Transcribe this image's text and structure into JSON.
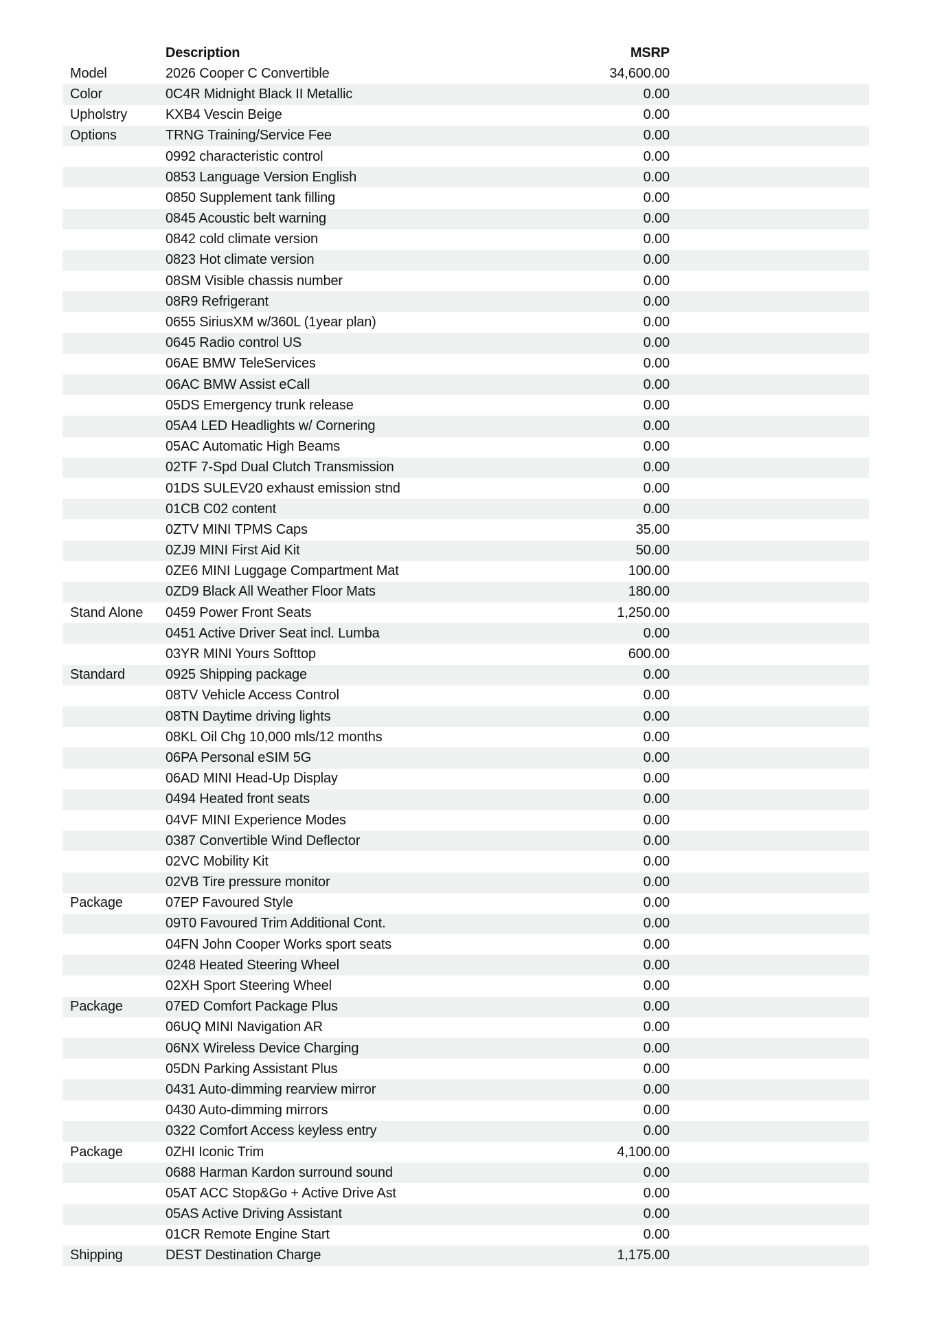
{
  "colors": {
    "row_stripe": "#eff1f0",
    "text": "#121212",
    "page_background": "#ffffff"
  },
  "table": {
    "header": {
      "category": "",
      "description": "Description",
      "msrp": "MSRP"
    },
    "rows": [
      {
        "category": "Model",
        "description": "2026 Cooper C Convertible",
        "msrp": "34,600.00"
      },
      {
        "category": "Color",
        "description": "0C4R Midnight Black II Metallic",
        "msrp": "0.00"
      },
      {
        "category": "Upholstry",
        "description": "KXB4 Vescin Beige",
        "msrp": "0.00"
      },
      {
        "category": "Options",
        "description": "TRNG Training/Service Fee",
        "msrp": "0.00"
      },
      {
        "category": "",
        "description": "0992 characteristic control",
        "msrp": "0.00"
      },
      {
        "category": "",
        "description": "0853 Language Version English",
        "msrp": "0.00"
      },
      {
        "category": "",
        "description": "0850 Supplement tank filling",
        "msrp": "0.00"
      },
      {
        "category": "",
        "description": "0845 Acoustic belt warning",
        "msrp": "0.00"
      },
      {
        "category": "",
        "description": "0842 cold climate version",
        "msrp": "0.00"
      },
      {
        "category": "",
        "description": "0823 Hot climate version",
        "msrp": "0.00"
      },
      {
        "category": "",
        "description": "08SM Visible chassis number",
        "msrp": "0.00"
      },
      {
        "category": "",
        "description": "08R9 Refrigerant",
        "msrp": "0.00"
      },
      {
        "category": "",
        "description": "0655 SiriusXM w/360L (1year plan)",
        "msrp": "0.00"
      },
      {
        "category": "",
        "description": "0645 Radio control US",
        "msrp": "0.00"
      },
      {
        "category": "",
        "description": "06AE BMW TeleServices",
        "msrp": "0.00"
      },
      {
        "category": "",
        "description": "06AC BMW Assist eCall",
        "msrp": "0.00"
      },
      {
        "category": "",
        "description": "05DS Emergency trunk release",
        "msrp": "0.00"
      },
      {
        "category": "",
        "description": "05A4 LED Headlights w/ Cornering",
        "msrp": "0.00"
      },
      {
        "category": "",
        "description": "05AC Automatic High Beams",
        "msrp": "0.00"
      },
      {
        "category": "",
        "description": "02TF 7-Spd Dual Clutch Transmission",
        "msrp": "0.00"
      },
      {
        "category": "",
        "description": "01DS SULEV20 exhaust emission stnd",
        "msrp": "0.00"
      },
      {
        "category": "",
        "description": "01CB C02 content",
        "msrp": "0.00"
      },
      {
        "category": "",
        "description": "0ZTV MINI TPMS Caps",
        "msrp": "35.00"
      },
      {
        "category": "",
        "description": "0ZJ9 MINI First Aid Kit",
        "msrp": "50.00"
      },
      {
        "category": "",
        "description": "0ZE6 MINI Luggage Compartment Mat",
        "msrp": "100.00"
      },
      {
        "category": "",
        "description": "0ZD9 Black All Weather Floor Mats",
        "msrp": "180.00"
      },
      {
        "category": "Stand Alone",
        "description": "0459 Power Front Seats",
        "msrp": "1,250.00"
      },
      {
        "category": "",
        "description": "0451 Active Driver Seat incl. Lumba",
        "msrp": "0.00"
      },
      {
        "category": "",
        "description": "03YR MINI Yours Softtop",
        "msrp": "600.00"
      },
      {
        "category": "Standard",
        "description": "0925 Shipping package",
        "msrp": "0.00"
      },
      {
        "category": "",
        "description": "08TV Vehicle Access Control",
        "msrp": "0.00"
      },
      {
        "category": "",
        "description": "08TN Daytime driving lights",
        "msrp": "0.00"
      },
      {
        "category": "",
        "description": "08KL Oil Chg 10,000 mls/12 months",
        "msrp": "0.00"
      },
      {
        "category": "",
        "description": "06PA Personal eSIM 5G",
        "msrp": "0.00"
      },
      {
        "category": "",
        "description": "06AD MINI Head-Up Display",
        "msrp": "0.00"
      },
      {
        "category": "",
        "description": "0494 Heated front seats",
        "msrp": "0.00"
      },
      {
        "category": "",
        "description": "04VF MINI Experience Modes",
        "msrp": "0.00"
      },
      {
        "category": "",
        "description": "0387 Convertible Wind Deflector",
        "msrp": "0.00"
      },
      {
        "category": "",
        "description": "02VC Mobility Kit",
        "msrp": "0.00"
      },
      {
        "category": "",
        "description": "02VB Tire pressure monitor",
        "msrp": "0.00"
      },
      {
        "category": "Package",
        "description": "07EP Favoured Style",
        "msrp": "0.00"
      },
      {
        "category": "",
        "description": "09T0 Favoured Trim Additional Cont.",
        "msrp": "0.00"
      },
      {
        "category": "",
        "description": "04FN John Cooper Works sport seats",
        "msrp": "0.00"
      },
      {
        "category": "",
        "description": "0248 Heated Steering Wheel",
        "msrp": "0.00"
      },
      {
        "category": "",
        "description": "02XH Sport Steering Wheel",
        "msrp": "0.00"
      },
      {
        "category": "Package",
        "description": "07ED Comfort Package Plus",
        "msrp": "0.00"
      },
      {
        "category": "",
        "description": "06UQ MINI Navigation AR",
        "msrp": "0.00"
      },
      {
        "category": "",
        "description": "06NX Wireless Device Charging",
        "msrp": "0.00"
      },
      {
        "category": "",
        "description": "05DN Parking Assistant Plus",
        "msrp": "0.00"
      },
      {
        "category": "",
        "description": "0431 Auto-dimming rearview mirror",
        "msrp": "0.00"
      },
      {
        "category": "",
        "description": "0430 Auto-dimming mirrors",
        "msrp": "0.00"
      },
      {
        "category": "",
        "description": "0322 Comfort Access keyless entry",
        "msrp": "0.00"
      },
      {
        "category": "Package",
        "description": "0ZHI Iconic Trim",
        "msrp": "4,100.00"
      },
      {
        "category": "",
        "description": "0688 Harman Kardon surround sound",
        "msrp": "0.00"
      },
      {
        "category": "",
        "description": "05AT ACC Stop&Go + Active Drive Ast",
        "msrp": "0.00"
      },
      {
        "category": "",
        "description": "05AS Active Driving Assistant",
        "msrp": "0.00"
      },
      {
        "category": "",
        "description": "01CR Remote Engine Start",
        "msrp": "0.00"
      },
      {
        "category": "Shipping",
        "description": "DEST Destination Charge",
        "msrp": "1,175.00"
      }
    ]
  }
}
